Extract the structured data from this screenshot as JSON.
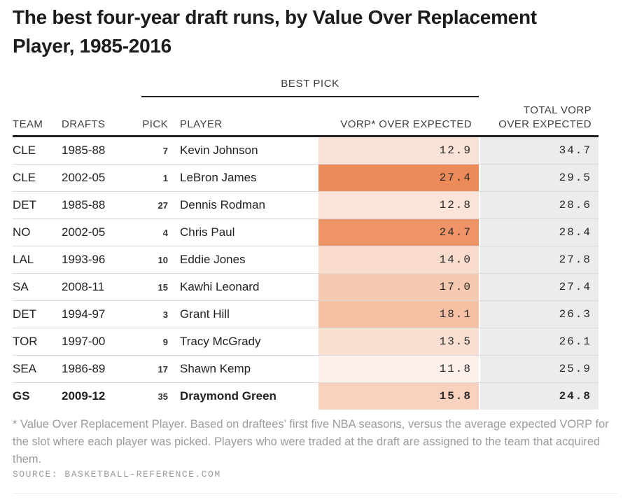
{
  "title": {
    "line1": "The best four-year draft runs, by Value Over Replacement",
    "line2": "Player, 1985-2016"
  },
  "chart_data": {
    "type": "table",
    "group_header": "BEST PICK",
    "headers": {
      "team": "TEAM",
      "drafts": "DRAFTS",
      "pick": "PICK",
      "player": "PLAYER",
      "vorp": "VORP* OVER EXPECTED",
      "total_line1": "TOTAL VORP",
      "total_line2": "OVER EXPECTED"
    },
    "rows": [
      {
        "team": "CLE",
        "drafts": "1985-88",
        "pick": "7",
        "player": "Kevin Johnson",
        "vorp_over_expected": 12.9,
        "total_vorp_over_expected": 34.7,
        "cell_color": "#fbe2d6",
        "highlight": false
      },
      {
        "team": "CLE",
        "drafts": "2002-05",
        "pick": "1",
        "player": "LeBron James",
        "vorp_over_expected": 27.4,
        "total_vorp_over_expected": 29.5,
        "cell_color": "#ec8a59",
        "highlight": false
      },
      {
        "team": "DET",
        "drafts": "1985-88",
        "pick": "27",
        "player": "Dennis Rodman",
        "vorp_over_expected": 12.8,
        "total_vorp_over_expected": 28.6,
        "cell_color": "#fbe3d7",
        "highlight": false
      },
      {
        "team": "NO",
        "drafts": "2002-05",
        "pick": "4",
        "player": "Chris Paul",
        "vorp_over_expected": 24.7,
        "total_vorp_over_expected": 28.4,
        "cell_color": "#ef9468",
        "highlight": false
      },
      {
        "team": "LAL",
        "drafts": "1993-96",
        "pick": "10",
        "player": "Eddie Jones",
        "vorp_over_expected": 14.0,
        "total_vorp_over_expected": 27.8,
        "cell_color": "#fadcce",
        "highlight": false
      },
      {
        "team": "SA",
        "drafts": "2008-11",
        "pick": "15",
        "player": "Kawhi Leonard",
        "vorp_over_expected": 17.0,
        "total_vorp_over_expected": 27.4,
        "cell_color": "#f6cab1",
        "highlight": false
      },
      {
        "team": "DET",
        "drafts": "1994-97",
        "pick": "3",
        "player": "Grant Hill",
        "vorp_over_expected": 18.1,
        "total_vorp_over_expected": 26.3,
        "cell_color": "#f5c0a4",
        "highlight": false
      },
      {
        "team": "TOR",
        "drafts": "1997-00",
        "pick": "9",
        "player": "Tracy McGrady",
        "vorp_over_expected": 13.5,
        "total_vorp_over_expected": 26.1,
        "cell_color": "#fadfd2",
        "highlight": false
      },
      {
        "team": "SEA",
        "drafts": "1986-89",
        "pick": "17",
        "player": "Shawn Kemp",
        "vorp_over_expected": 11.8,
        "total_vorp_over_expected": 25.9,
        "cell_color": "#fdf0ea",
        "highlight": false
      },
      {
        "team": "GS",
        "drafts": "2009-12",
        "pick": "35",
        "player": "Draymond Green",
        "vorp_over_expected": 15.8,
        "total_vorp_over_expected": 24.8,
        "cell_color": "#f8d2bf",
        "highlight": true
      }
    ]
  },
  "colors": {
    "accent_max": "#ec8a59",
    "accent_min": "#fdf0ea",
    "total_column_bg": "#ececea",
    "header_rule": "#222222",
    "row_divider": "#dadada",
    "footnote_text": "#9c9c9c"
  },
  "footnote": "* Value Over Replacement Player. Based on draftees’ first five NBA seasons, versus the average expected VORP for the slot where each player was picked. Players who were traded at the draft are assigned to the team that acquired them.",
  "source": "SOURCE: BASKETBALL-REFERENCE.COM"
}
